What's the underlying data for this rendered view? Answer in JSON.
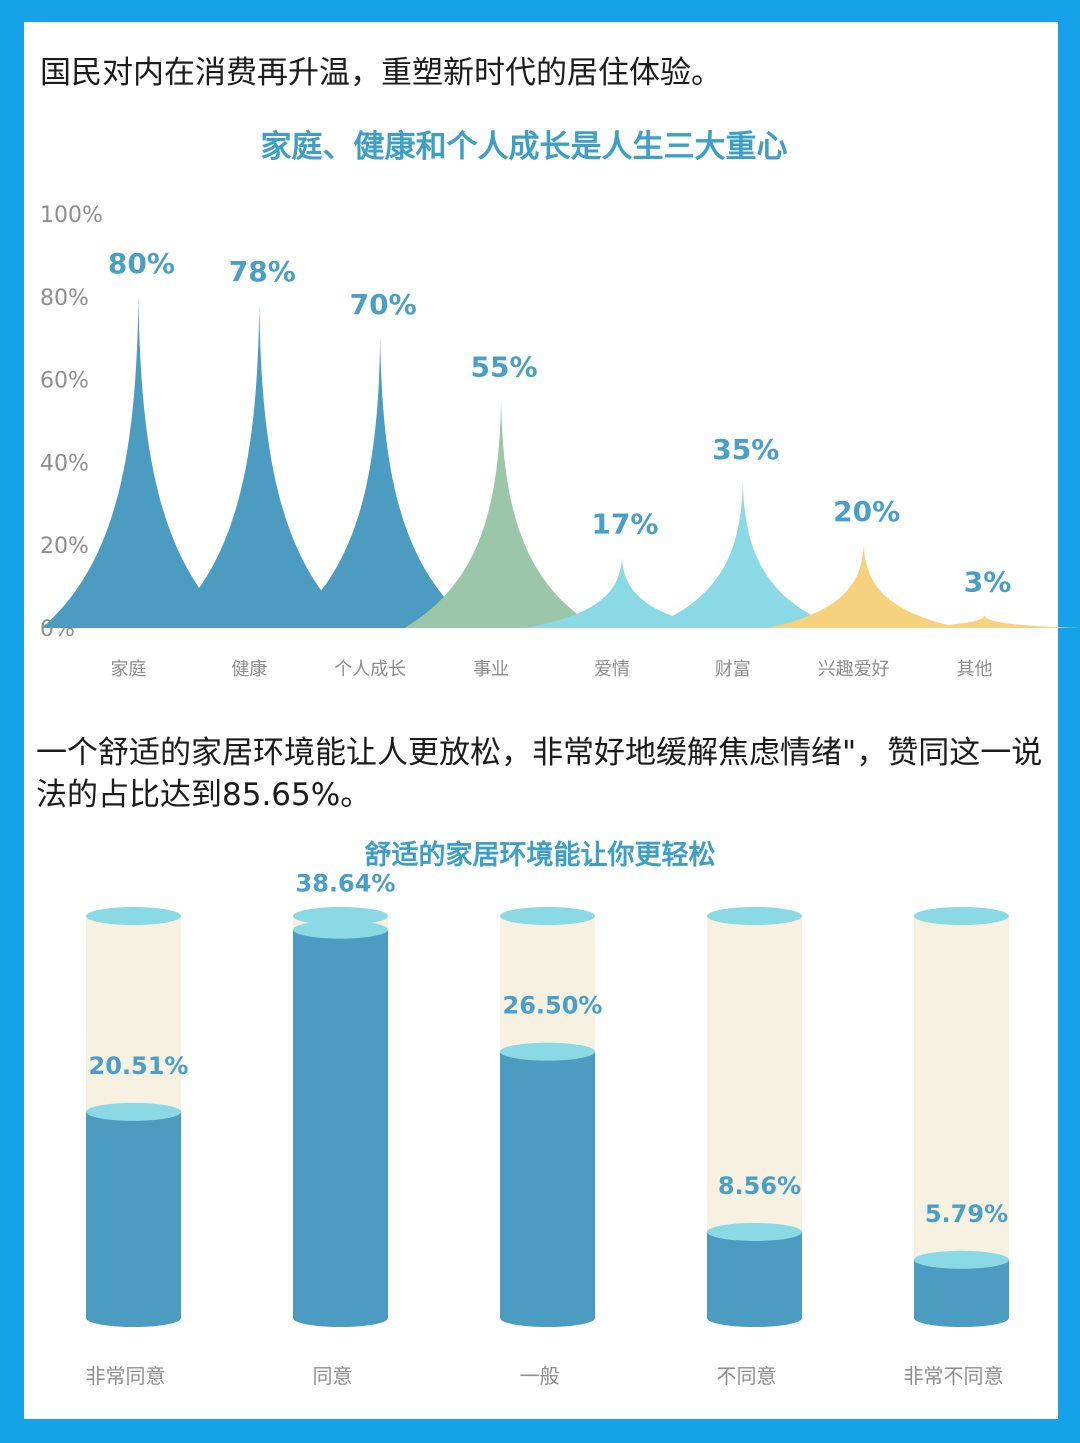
{
  "section1": {
    "heading": "国民对内在消费再升温，重塑新时代的居住体验。"
  },
  "section2": {
    "heading": "一个舒适的家居环境能让人更放松，非常好地缓解焦虑情绪\"，赞同这一说法的占比达到85.65%。"
  },
  "colors": {
    "frame": "#16a2e8",
    "title": "#3e9fc4",
    "blue": "#4b9cc0",
    "green": "#9cc6a9",
    "cyan": "#8ad9e4",
    "yellow": "#f6d27e",
    "cream": "#f6f1e1",
    "label": "#4a9fc8"
  },
  "chart_data": [
    {
      "type": "area",
      "title": "家庭、健康和个人成长是人生三大重心",
      "categories": [
        "家庭",
        "健康",
        "个人成长",
        "事业",
        "爱情",
        "财富",
        "兴趣爱好",
        "其他"
      ],
      "values": [
        80,
        78,
        70,
        55,
        17,
        35,
        20,
        3
      ],
      "value_labels": [
        "80%",
        "78%",
        "70%",
        "55%",
        "17%",
        "35%",
        "20%",
        "3%"
      ],
      "colors": [
        "#4b9cc0",
        "#4b9cc0",
        "#4b9cc0",
        "#9cc6a9",
        "#8ad9e4",
        "#8ad9e4",
        "#f6d27e",
        "#f6d27e"
      ],
      "yticks": [
        "100%",
        "80%",
        "60%",
        "40%",
        "20%",
        "0%"
      ],
      "ylim": [
        0,
        100
      ],
      "grid": false
    },
    {
      "type": "bar",
      "title": "舒适的家居环境能让你更轻松",
      "categories": [
        "非常同意",
        "同意",
        "一般",
        "不同意",
        "非常不同意"
      ],
      "values": [
        20.51,
        38.64,
        26.5,
        8.56,
        5.79
      ],
      "value_labels": [
        "20.51%",
        "38.64%",
        "26.50%",
        "8.56%",
        "5.79%"
      ],
      "ylim": [
        0,
        40
      ]
    }
  ]
}
